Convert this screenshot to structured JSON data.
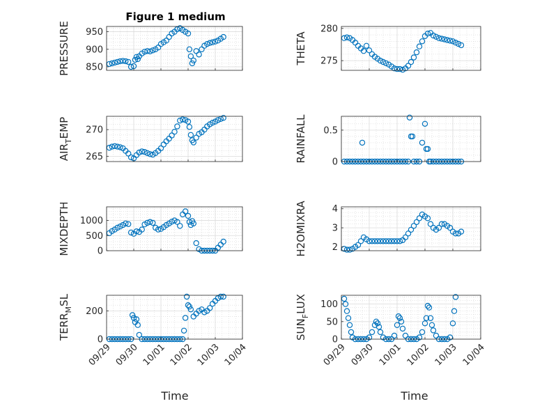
{
  "figure": {
    "title": "Figure 1 medium",
    "xlabel": "Time",
    "x_tick_labels": [
      "09/29",
      "09/30",
      "10/01",
      "10/02",
      "10/03",
      "10/04"
    ],
    "marker_color": "#0072BD"
  },
  "chart_data": [
    {
      "type": "scatter",
      "title": "Figure 1 medium",
      "ylabel": "PRESSURE",
      "xlim": [
        0,
        5
      ],
      "ylim": [
        840,
        965
      ],
      "yticks": [
        850,
        900,
        950
      ],
      "grid": true,
      "x": [
        0.1,
        0.2,
        0.3,
        0.4,
        0.5,
        0.6,
        0.7,
        0.8,
        0.9,
        1.0,
        1.05,
        1.1,
        1.15,
        1.2,
        1.3,
        1.4,
        1.5,
        1.6,
        1.7,
        1.8,
        1.9,
        2.0,
        2.1,
        2.2,
        2.3,
        2.4,
        2.5,
        2.6,
        2.7,
        2.8,
        2.9,
        3.0,
        3.05,
        3.1,
        3.15,
        3.2,
        3.3,
        3.4,
        3.5,
        3.6,
        3.7,
        3.8,
        3.9,
        4.0,
        4.1,
        4.2,
        4.3
      ],
      "y": [
        858,
        860,
        862,
        864,
        866,
        867,
        866,
        864,
        850,
        852,
        870,
        878,
        872,
        880,
        888,
        893,
        895,
        894,
        897,
        900,
        905,
        915,
        920,
        925,
        935,
        945,
        950,
        957,
        960,
        955,
        950,
        945,
        900,
        880,
        860,
        868,
        895,
        885,
        900,
        910,
        915,
        918,
        920,
        922,
        925,
        930,
        935
      ]
    },
    {
      "type": "scatter",
      "ylabel": "THETA",
      "xlim": [
        0,
        5
      ],
      "ylim": [
        273.5,
        280.3
      ],
      "yticks": [
        275,
        280
      ],
      "grid": true,
      "x": [
        0.1,
        0.2,
        0.3,
        0.4,
        0.5,
        0.6,
        0.7,
        0.8,
        0.9,
        1.0,
        1.1,
        1.2,
        1.3,
        1.4,
        1.5,
        1.6,
        1.7,
        1.8,
        1.9,
        2.0,
        2.1,
        2.2,
        2.3,
        2.4,
        2.5,
        2.6,
        2.7,
        2.8,
        2.9,
        3.0,
        3.1,
        3.2,
        3.3,
        3.4,
        3.5,
        3.6,
        3.7,
        3.8,
        3.9,
        4.0,
        4.1,
        4.2,
        4.3
      ],
      "y": [
        278.5,
        278.6,
        278.5,
        278.2,
        277.8,
        277.3,
        276.9,
        276.5,
        277.3,
        276.6,
        276.0,
        275.6,
        275.3,
        275.0,
        274.8,
        274.6,
        274.4,
        274.1,
        273.8,
        273.7,
        273.7,
        273.6,
        273.8,
        274.2,
        274.8,
        275.5,
        276.3,
        277.2,
        278.0,
        278.8,
        279.2,
        279.3,
        278.9,
        278.7,
        278.5,
        278.4,
        278.3,
        278.2,
        278.1,
        278.0,
        277.8,
        277.6,
        277.4
      ]
    },
    {
      "type": "scatter",
      "ylabel": "AIR_TEMP",
      "xlim": [
        0,
        5
      ],
      "ylim": [
        264,
        272.5
      ],
      "yticks": [
        265,
        270
      ],
      "grid": true,
      "x": [
        0.1,
        0.2,
        0.3,
        0.4,
        0.5,
        0.6,
        0.7,
        0.8,
        0.9,
        1.0,
        1.1,
        1.2,
        1.3,
        1.4,
        1.5,
        1.6,
        1.7,
        1.8,
        1.9,
        2.0,
        2.1,
        2.2,
        2.3,
        2.4,
        2.5,
        2.6,
        2.7,
        2.8,
        2.9,
        3.0,
        3.05,
        3.1,
        3.15,
        3.2,
        3.3,
        3.4,
        3.5,
        3.6,
        3.7,
        3.8,
        3.9,
        4.0,
        4.1,
        4.2,
        4.3
      ],
      "y": [
        266.6,
        266.8,
        266.9,
        266.8,
        266.7,
        266.5,
        266.0,
        265.5,
        264.8,
        264.6,
        265.2,
        265.7,
        265.9,
        265.8,
        265.6,
        265.4,
        265.3,
        265.6,
        266.0,
        266.5,
        267.2,
        267.8,
        268.3,
        268.9,
        269.6,
        270.6,
        271.7,
        271.9,
        271.8,
        271.5,
        270.5,
        269.0,
        268.0,
        267.6,
        268.5,
        269.2,
        269.5,
        270.0,
        270.6,
        271.0,
        271.3,
        271.5,
        271.8,
        272.0,
        272.2
      ]
    },
    {
      "type": "scatter",
      "ylabel": "RAINFALL",
      "xlim": [
        0,
        5
      ],
      "ylim": [
        0,
        0.72
      ],
      "yticks": [
        0,
        0.5
      ],
      "grid": true,
      "x": [
        0.1,
        0.2,
        0.3,
        0.4,
        0.5,
        0.6,
        0.7,
        0.75,
        0.8,
        0.9,
        1.0,
        1.1,
        1.2,
        1.3,
        1.4,
        1.5,
        1.6,
        1.7,
        1.8,
        1.9,
        2.0,
        2.1,
        2.2,
        2.3,
        2.4,
        2.45,
        2.5,
        2.55,
        2.6,
        2.7,
        2.8,
        2.9,
        3.0,
        3.05,
        3.1,
        3.15,
        3.2,
        3.3,
        3.4,
        3.5,
        3.6,
        3.7,
        3.8,
        3.9,
        4.0,
        4.1,
        4.2,
        4.3
      ],
      "y": [
        0,
        0,
        0,
        0,
        0,
        0,
        0,
        0.3,
        0,
        0,
        0,
        0,
        0,
        0,
        0,
        0,
        0,
        0,
        0,
        0,
        0,
        0,
        0,
        0,
        0,
        0.7,
        0.4,
        0.4,
        0,
        0,
        0,
        0.3,
        0.6,
        0.2,
        0.2,
        0,
        0,
        0,
        0,
        0,
        0,
        0,
        0,
        0,
        0,
        0,
        0,
        0
      ]
    },
    {
      "type": "scatter",
      "ylabel": "MIXDEPTH",
      "xlim": [
        0,
        5
      ],
      "ylim": [
        0,
        1450
      ],
      "yticks": [
        0,
        500,
        1000
      ],
      "grid": true,
      "x": [
        0.1,
        0.2,
        0.3,
        0.4,
        0.5,
        0.6,
        0.7,
        0.8,
        0.9,
        1.0,
        1.1,
        1.2,
        1.3,
        1.4,
        1.5,
        1.6,
        1.7,
        1.8,
        1.9,
        2.0,
        2.1,
        2.2,
        2.3,
        2.4,
        2.5,
        2.6,
        2.7,
        2.8,
        2.9,
        3.0,
        3.05,
        3.1,
        3.15,
        3.2,
        3.3,
        3.4,
        3.5,
        3.6,
        3.7,
        3.8,
        3.9,
        4.0,
        4.1,
        4.2,
        4.3
      ],
      "y": [
        580,
        650,
        700,
        760,
        800,
        850,
        900,
        880,
        600,
        560,
        640,
        620,
        700,
        870,
        920,
        950,
        920,
        760,
        700,
        720,
        780,
        850,
        900,
        960,
        1000,
        950,
        820,
        1200,
        1300,
        1150,
        950,
        850,
        980,
        900,
        250,
        50,
        0,
        0,
        0,
        0,
        0,
        0,
        100,
        200,
        300
      ]
    },
    {
      "type": "scatter",
      "ylabel": "H2OMIXRA",
      "xlim": [
        0,
        5
      ],
      "ylim": [
        1.8,
        4.1
      ],
      "yticks": [
        2,
        3,
        4
      ],
      "grid": true,
      "x": [
        0.1,
        0.2,
        0.3,
        0.4,
        0.5,
        0.6,
        0.7,
        0.8,
        0.9,
        1.0,
        1.1,
        1.2,
        1.3,
        1.4,
        1.5,
        1.6,
        1.7,
        1.8,
        1.9,
        2.0,
        2.1,
        2.2,
        2.3,
        2.4,
        2.5,
        2.6,
        2.7,
        2.8,
        2.9,
        3.0,
        3.1,
        3.2,
        3.3,
        3.4,
        3.5,
        3.6,
        3.7,
        3.8,
        3.9,
        4.0,
        4.1,
        4.2,
        4.3
      ],
      "y": [
        1.9,
        1.85,
        1.85,
        1.9,
        2.0,
        2.1,
        2.3,
        2.5,
        2.4,
        2.3,
        2.3,
        2.3,
        2.3,
        2.3,
        2.3,
        2.3,
        2.3,
        2.3,
        2.3,
        2.3,
        2.3,
        2.35,
        2.5,
        2.7,
        2.9,
        3.1,
        3.3,
        3.5,
        3.7,
        3.6,
        3.5,
        3.2,
        3.0,
        2.9,
        3.0,
        3.2,
        3.2,
        3.1,
        3.0,
        2.8,
        2.7,
        2.7,
        2.8
      ]
    },
    {
      "type": "scatter",
      "ylabel": "TERR_MSL",
      "xlim": [
        0,
        5
      ],
      "ylim": [
        0,
        310
      ],
      "yticks": [
        0,
        200
      ],
      "grid": true,
      "x": [
        0.1,
        0.2,
        0.3,
        0.4,
        0.5,
        0.6,
        0.7,
        0.8,
        0.9,
        0.95,
        1.0,
        1.05,
        1.1,
        1.15,
        1.2,
        1.3,
        1.4,
        1.5,
        1.6,
        1.7,
        1.8,
        1.9,
        2.0,
        2.1,
        2.2,
        2.3,
        2.4,
        2.5,
        2.6,
        2.7,
        2.8,
        2.85,
        2.9,
        2.95,
        3.0,
        3.05,
        3.1,
        3.2,
        3.3,
        3.4,
        3.5,
        3.6,
        3.7,
        3.8,
        3.9,
        4.0,
        4.1,
        4.2,
        4.3
      ],
      "y": [
        0,
        0,
        0,
        0,
        0,
        0,
        0,
        0,
        0,
        170,
        150,
        120,
        140,
        100,
        30,
        0,
        0,
        0,
        0,
        0,
        0,
        0,
        0,
        0,
        0,
        0,
        0,
        0,
        0,
        0,
        0,
        60,
        150,
        300,
        240,
        230,
        210,
        160,
        180,
        200,
        210,
        190,
        200,
        220,
        250,
        270,
        290,
        300,
        300
      ]
    },
    {
      "type": "scatter",
      "ylabel": "SUN_FLUX",
      "xlim": [
        0,
        5
      ],
      "ylim": [
        0,
        125
      ],
      "yticks": [
        0,
        50,
        100
      ],
      "grid": true,
      "x": [
        0.1,
        0.15,
        0.2,
        0.25,
        0.3,
        0.35,
        0.4,
        0.5,
        0.6,
        0.7,
        0.8,
        0.9,
        1.0,
        1.1,
        1.2,
        1.25,
        1.3,
        1.35,
        1.4,
        1.5,
        1.6,
        1.7,
        1.8,
        1.9,
        2.0,
        2.05,
        2.1,
        2.15,
        2.2,
        2.3,
        2.4,
        2.5,
        2.6,
        2.7,
        2.8,
        2.9,
        3.0,
        3.05,
        3.1,
        3.15,
        3.2,
        3.25,
        3.3,
        3.4,
        3.5,
        3.6,
        3.7,
        3.8,
        3.9,
        4.0,
        4.05,
        4.1
      ],
      "y": [
        115,
        100,
        80,
        60,
        40,
        20,
        5,
        0,
        0,
        0,
        0,
        0,
        5,
        20,
        40,
        50,
        45,
        35,
        20,
        5,
        0,
        0,
        0,
        10,
        40,
        65,
        60,
        50,
        30,
        10,
        0,
        0,
        0,
        0,
        5,
        20,
        45,
        60,
        95,
        90,
        60,
        40,
        25,
        10,
        0,
        0,
        0,
        0,
        5,
        45,
        80,
        120
      ]
    }
  ]
}
